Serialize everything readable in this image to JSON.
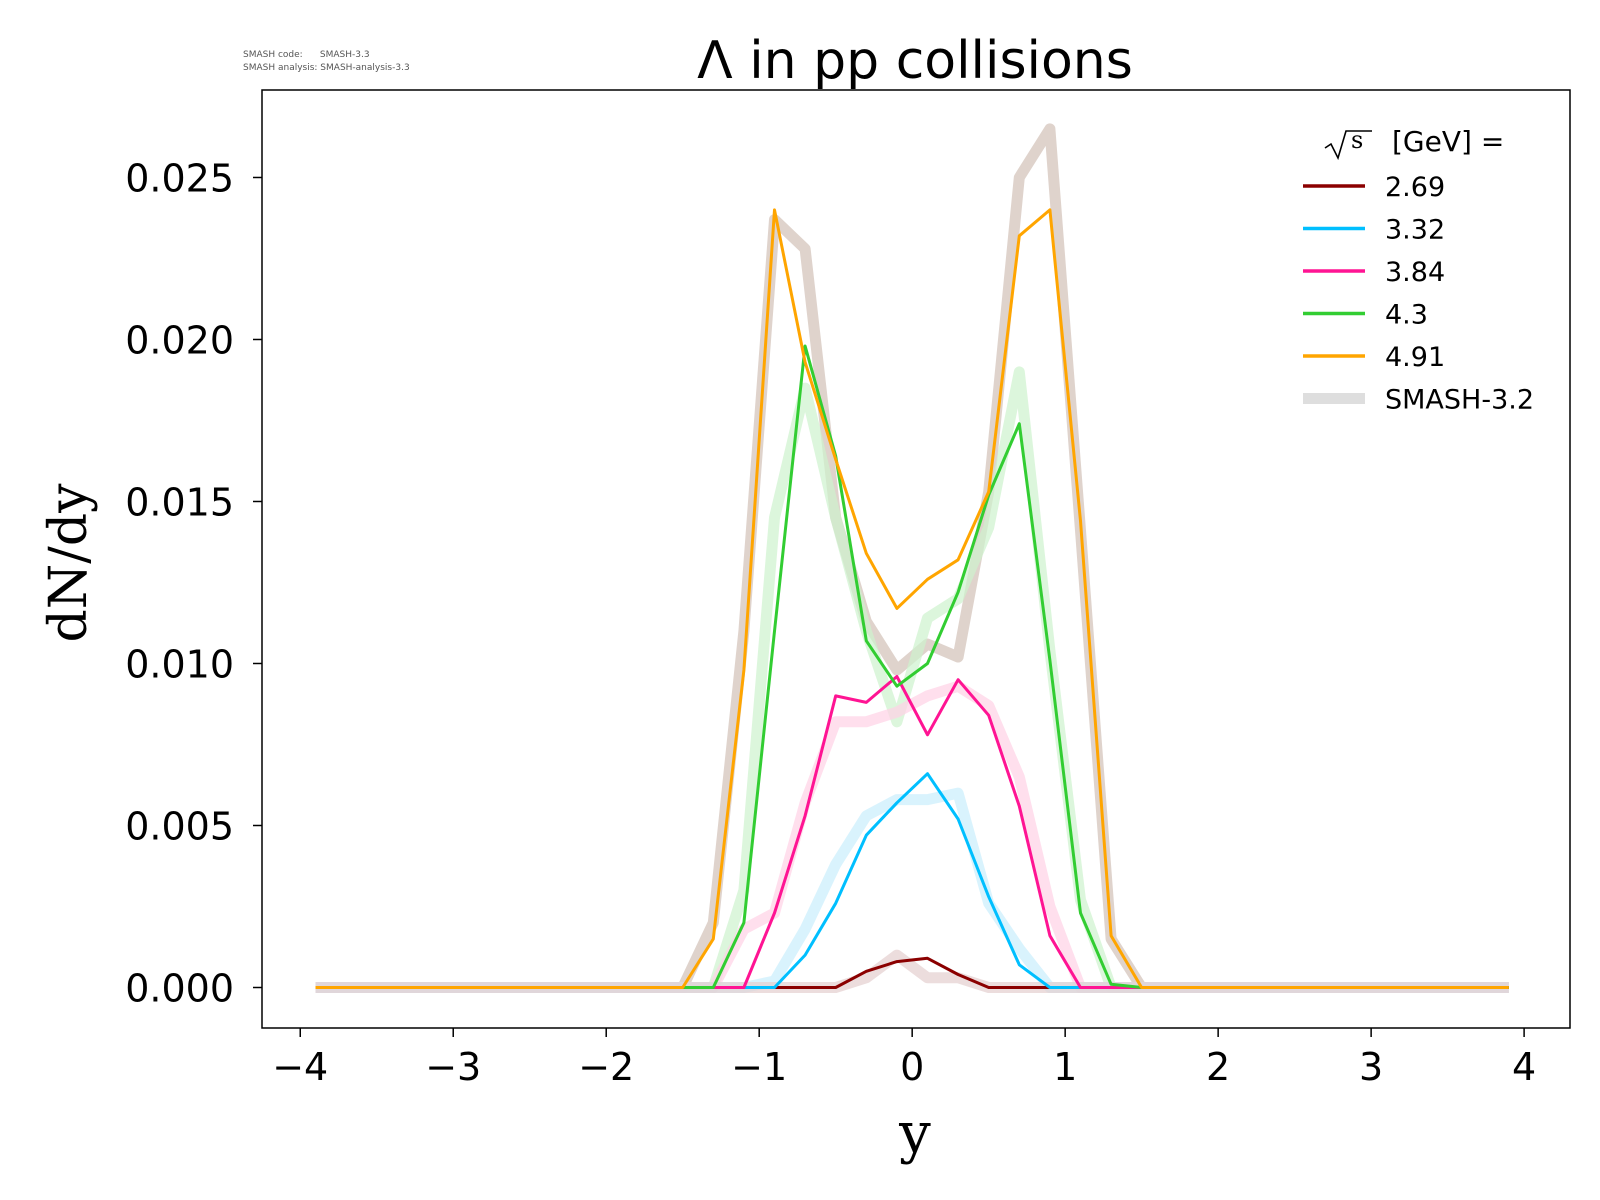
{
  "header": {
    "code_line": "SMASH code:      SMASH-3.3",
    "analysis_line": "SMASH analysis: SMASH-analysis-3.3"
  },
  "chart_data": {
    "type": "line",
    "title": "Λ in pp collisions",
    "xlabel": "y",
    "ylabel": "dN/dy",
    "xlim": [
      -4.25,
      4.3
    ],
    "ylim": [
      -0.00125,
      0.0277
    ],
    "xticks": [
      -4,
      -3,
      -2,
      -1,
      0,
      1,
      2,
      3,
      4
    ],
    "xtick_labels": [
      "−4",
      "−3",
      "−2",
      "−1",
      "0",
      "1",
      "2",
      "3",
      "4"
    ],
    "yticks": [
      0,
      0.005,
      0.01,
      0.015,
      0.02,
      0.025
    ],
    "ytick_labels": [
      "0.000",
      "0.005",
      "0.010",
      "0.015",
      "0.020",
      "0.025"
    ],
    "grid": false,
    "legend_title_unit": "[GeV] =",
    "legend_position": "top-right",
    "x": [
      -3.9,
      -1.5,
      -1.3,
      -1.1,
      -0.9,
      -0.7,
      -0.5,
      -0.3,
      -0.1,
      0.1,
      0.3,
      0.5,
      0.7,
      0.9,
      1.1,
      1.3,
      1.5,
      3.9
    ],
    "series": [
      {
        "name": "2.69",
        "color": "#8b0000",
        "values": [
          0,
          0,
          0,
          0,
          0,
          0,
          0,
          0.0005,
          0.0008,
          0.0009,
          0.0004,
          0,
          0,
          0,
          0,
          0,
          0,
          0
        ]
      },
      {
        "name": "3.32",
        "color": "#00bfff",
        "values": [
          0,
          0,
          0,
          0,
          0,
          0.001,
          0.0026,
          0.0047,
          0.0057,
          0.0066,
          0.0052,
          0.0028,
          0.0007,
          0,
          0,
          0,
          0,
          0
        ]
      },
      {
        "name": "3.84",
        "color": "#ff1493",
        "values": [
          0,
          0,
          0,
          0,
          0.0023,
          0.0053,
          0.009,
          0.0088,
          0.0096,
          0.0078,
          0.0095,
          0.0084,
          0.0056,
          0.0016,
          0,
          0,
          0,
          0
        ]
      },
      {
        "name": "4.3",
        "color": "#32cd32",
        "values": [
          0,
          0,
          0,
          0.002,
          0.011,
          0.0198,
          0.0164,
          0.0107,
          0.0093,
          0.01,
          0.0122,
          0.0152,
          0.0174,
          0.0101,
          0.0023,
          0.0001,
          0,
          0
        ]
      },
      {
        "name": "4.91",
        "color": "#ffa500",
        "values": [
          0,
          0,
          0.0015,
          0.0098,
          0.024,
          0.0193,
          0.0163,
          0.0134,
          0.0117,
          0.0126,
          0.0132,
          0.0153,
          0.0232,
          0.024,
          0.0144,
          0.0016,
          0,
          0
        ]
      }
    ],
    "reference_label": "SMASH-3.2",
    "reference_series": [
      {
        "color": "#d2c0b7",
        "values": [
          0,
          0,
          0.002,
          0.011,
          0.0237,
          0.0228,
          0.0145,
          0.0113,
          0.0098,
          0.0106,
          0.0102,
          0.0153,
          0.025,
          0.0265,
          0.0141,
          0.0015,
          0,
          0
        ]
      },
      {
        "color": "#cdf2cd",
        "values": [
          0,
          0,
          0,
          0.003,
          0.0145,
          0.0185,
          0.0145,
          0.011,
          0.0082,
          0.0114,
          0.012,
          0.0142,
          0.019,
          0.0104,
          0.0027,
          0,
          0,
          0
        ]
      },
      {
        "color": "#ffd1e6",
        "values": [
          0,
          0,
          0,
          0.0018,
          0.0023,
          0.0057,
          0.0082,
          0.0082,
          0.0085,
          0.009,
          0.0093,
          0.0087,
          0.0065,
          0.0025,
          0,
          0,
          0,
          0
        ]
      },
      {
        "color": "#c9eefc",
        "values": [
          0,
          0,
          0,
          0,
          0.0002,
          0.0018,
          0.0038,
          0.0053,
          0.0058,
          0.0058,
          0.006,
          0.0026,
          0.0012,
          0,
          0,
          0,
          0,
          0
        ]
      },
      {
        "color": "#e4cfcf",
        "values": [
          0,
          0,
          0,
          0,
          0,
          0,
          0,
          0.0003,
          0.001,
          0.0003,
          0.0003,
          0,
          0,
          0,
          0,
          0,
          0,
          0
        ]
      }
    ],
    "reference_color": "#bebebe"
  }
}
